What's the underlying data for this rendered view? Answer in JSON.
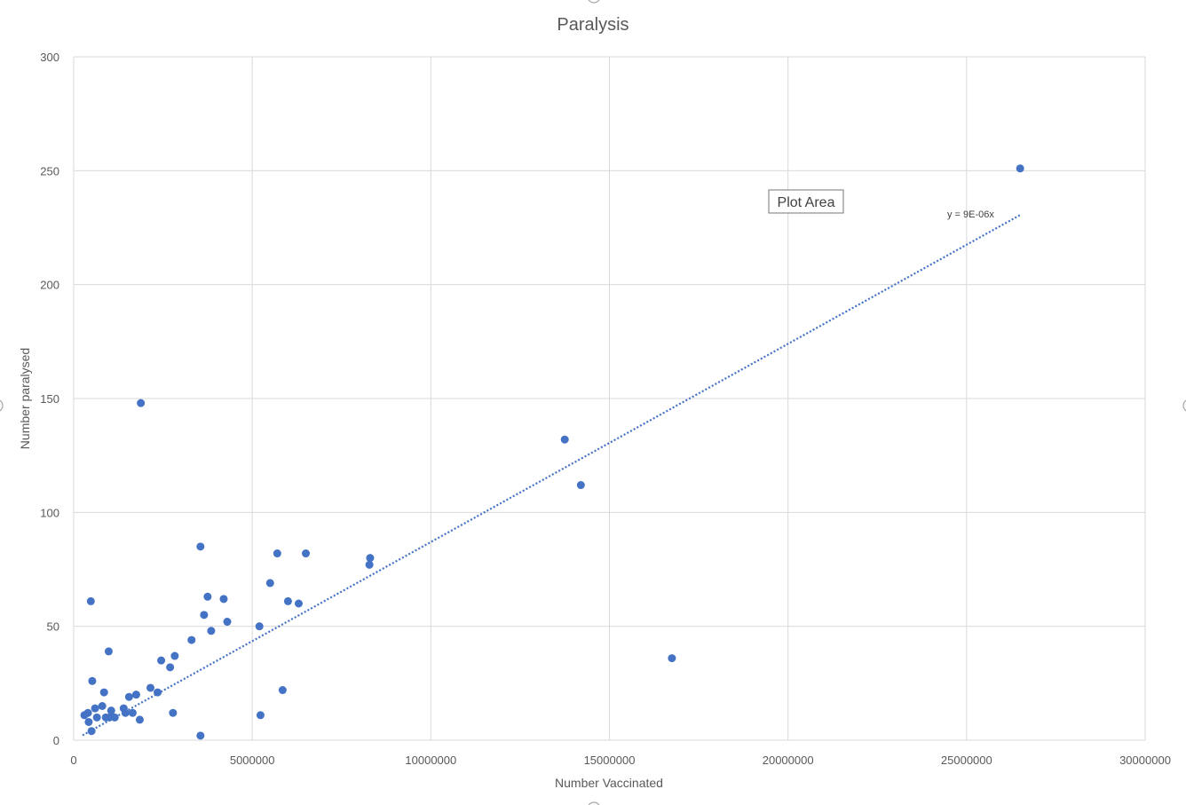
{
  "chart_data": {
    "type": "scatter",
    "title": "Paralysis",
    "xlabel": "Number Vaccinated",
    "ylabel": "Number paralysed",
    "xlim": [
      0,
      30000000
    ],
    "ylim": [
      0,
      300
    ],
    "xticks": [
      0,
      5000000,
      10000000,
      15000000,
      20000000,
      25000000,
      30000000
    ],
    "yticks": [
      0,
      50,
      100,
      150,
      200,
      250,
      300
    ],
    "grid": true,
    "marker_color": "#4472c4",
    "trendline": {
      "type": "linear",
      "slope": 8.7e-06,
      "x_range": [
        250000,
        26500000
      ],
      "equation_label": "y = 9E-06x",
      "color": "#4472c4",
      "style": "dotted"
    },
    "tooltip": "Plot Area",
    "points": [
      [
        300000,
        11
      ],
      [
        400000,
        12
      ],
      [
        420000,
        8
      ],
      [
        480000,
        61
      ],
      [
        500000,
        4
      ],
      [
        520000,
        26
      ],
      [
        600000,
        14
      ],
      [
        650000,
        10
      ],
      [
        800000,
        15
      ],
      [
        850000,
        21
      ],
      [
        900000,
        10
      ],
      [
        980000,
        39
      ],
      [
        1000000,
        10
      ],
      [
        1050000,
        13
      ],
      [
        1150000,
        10
      ],
      [
        1400000,
        14
      ],
      [
        1450000,
        12
      ],
      [
        1550000,
        19
      ],
      [
        1650000,
        12
      ],
      [
        1750000,
        20
      ],
      [
        1850000,
        9
      ],
      [
        1880000,
        148
      ],
      [
        2150000,
        23
      ],
      [
        2350000,
        21
      ],
      [
        2450000,
        35
      ],
      [
        2700000,
        32
      ],
      [
        2780000,
        12
      ],
      [
        2830000,
        37
      ],
      [
        3300000,
        44
      ],
      [
        3550000,
        2
      ],
      [
        3550000,
        85
      ],
      [
        3650000,
        55
      ],
      [
        3750000,
        63
      ],
      [
        3850000,
        48
      ],
      [
        4200000,
        62
      ],
      [
        4300000,
        52
      ],
      [
        5200000,
        50
      ],
      [
        5230000,
        11
      ],
      [
        5500000,
        69
      ],
      [
        5700000,
        82
      ],
      [
        5850000,
        22
      ],
      [
        6000000,
        61
      ],
      [
        6300000,
        60
      ],
      [
        6500000,
        82
      ],
      [
        8280000,
        77
      ],
      [
        8300000,
        80
      ],
      [
        13750000,
        132
      ],
      [
        14200000,
        112
      ],
      [
        16750000,
        36
      ],
      [
        26500000,
        251
      ]
    ]
  }
}
